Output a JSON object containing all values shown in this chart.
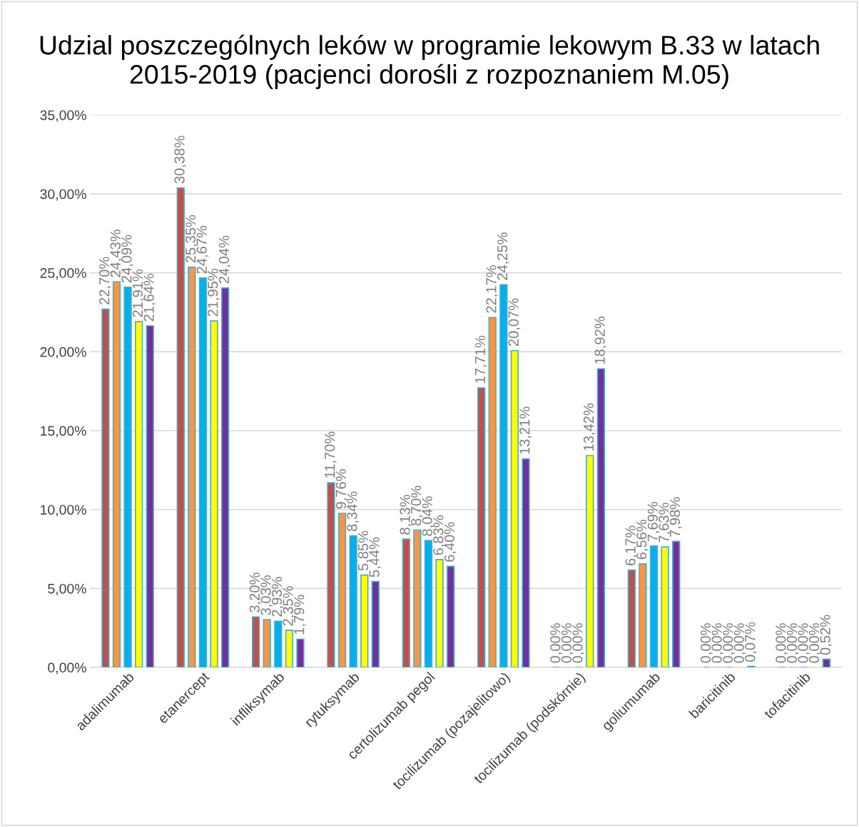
{
  "chart_data": {
    "type": "bar",
    "title": "Udzial poszczególnych leków w programie lekowym B.33 w latach 2015-2019 (pacjenci dorośli z rozpoznaniem M.05)",
    "categories": [
      "adalimumab",
      "etanercept",
      "infliksymab",
      "rytuksymab",
      "certolizumab pegol",
      "tocilizumab (pozajelitowo)",
      "tocilizumab (podskórnie)",
      "goliumumab",
      "baricitinib",
      "tofacitinib"
    ],
    "series": [
      {
        "color": "#c0504d",
        "values": [
          22.7,
          30.38,
          3.2,
          11.7,
          8.13,
          17.71,
          0.0,
          6.17,
          0.0,
          0.0
        ],
        "value_labels": [
          "22,70%",
          "30,38%",
          "3,20%",
          "11,70%",
          "8,13%",
          "17,71%",
          "0,00%",
          "6,17%",
          "0,00%",
          "0,00%"
        ]
      },
      {
        "color": "#f79646",
        "values": [
          24.43,
          25.35,
          3.03,
          9.76,
          8.7,
          22.17,
          0.0,
          6.56,
          0.0,
          0.0
        ],
        "value_labels": [
          "24,43%",
          "25,35%",
          "3,03%",
          "9,76%",
          "8,70%",
          "22,17%",
          "0,00%",
          "6,56%",
          "0,00%",
          "0,00%"
        ]
      },
      {
        "color": "#00b0f0",
        "values": [
          24.09,
          24.67,
          2.93,
          8.34,
          8.04,
          24.25,
          0.0,
          7.69,
          0.0,
          0.0
        ],
        "value_labels": [
          "24,09%",
          "24,67%",
          "2,93%",
          "8,34%",
          "8,04%",
          "24,25%",
          "0,00%",
          "7,69%",
          "0,00%",
          "0,00%"
        ]
      },
      {
        "color": "#ffff00",
        "values": [
          21.91,
          21.95,
          2.35,
          5.85,
          6.83,
          20.07,
          13.42,
          7.63,
          0.0,
          0.0
        ],
        "value_labels": [
          "21,91%",
          "21,95%",
          "2,35%",
          "5,85%",
          "6,83%",
          "20,07%",
          "13,42%",
          "7,63%",
          "0,00%",
          "0,00%"
        ]
      },
      {
        "color": "#7030a0",
        "values": [
          21.64,
          24.04,
          1.79,
          5.44,
          6.4,
          13.21,
          18.92,
          7.98,
          0.07,
          0.52
        ],
        "value_labels": [
          "21,64%",
          "24,04%",
          "1,79%",
          "5,44%",
          "6,40%",
          "13,21%",
          "18,92%",
          "7,98%",
          "0,07%",
          "0,52%"
        ]
      }
    ],
    "ylim": [
      0,
      35
    ],
    "yticks": [
      {
        "value": 0,
        "label": "0,00%"
      },
      {
        "value": 5,
        "label": "5,00%"
      },
      {
        "value": 10,
        "label": "10,00%"
      },
      {
        "value": 15,
        "label": "15,00%"
      },
      {
        "value": 20,
        "label": "20,00%"
      },
      {
        "value": 25,
        "label": "25,00%"
      },
      {
        "value": 30,
        "label": "30,00%"
      },
      {
        "value": 35,
        "label": "35,00%"
      }
    ],
    "grid": "y"
  }
}
